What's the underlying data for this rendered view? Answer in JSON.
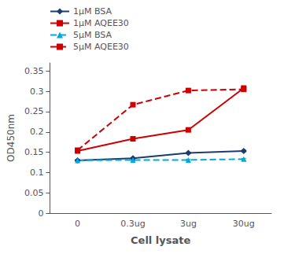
{
  "chart_data": {
    "type": "line",
    "xlabel": "Cell lysate",
    "ylabel": "OD450nm",
    "categories": [
      "0",
      "0.3ug",
      "3ug",
      "30ug"
    ],
    "series": [
      {
        "name": "1μM BSA",
        "color": "#1a3c6e",
        "line_style": "solid",
        "marker": "diamond",
        "values": [
          0.13,
          0.135,
          0.148,
          0.153
        ],
        "yerr": [
          0.002,
          0.002,
          0.002,
          0.002
        ]
      },
      {
        "name": "1μM AQEE30",
        "color": "#cc0000",
        "line_style": "solid",
        "marker": "square",
        "values": [
          0.153,
          0.183,
          0.205,
          0.308
        ],
        "yerr": [
          0.003,
          0.003,
          0.003,
          0.005
        ]
      },
      {
        "name": "5μM BSA",
        "color": "#00aadd",
        "line_style": "dashed",
        "marker": "triangle",
        "values": [
          0.13,
          0.131,
          0.131,
          0.133
        ],
        "yerr": [
          0.002,
          0.002,
          0.002,
          0.002
        ]
      },
      {
        "name": "5μM AQEE30",
        "color": "#cc0000",
        "line_style": "dashed",
        "marker": "square",
        "values": [
          0.155,
          0.267,
          0.302,
          0.305
        ],
        "yerr": [
          0.003,
          0.004,
          0.004,
          0.004
        ]
      }
    ],
    "ylim": [
      0,
      0.37
    ],
    "yticks": [
      0,
      0.05,
      0.1,
      0.15,
      0.2,
      0.25,
      0.3,
      0.35
    ],
    "grid": false,
    "legend": "upper left"
  }
}
